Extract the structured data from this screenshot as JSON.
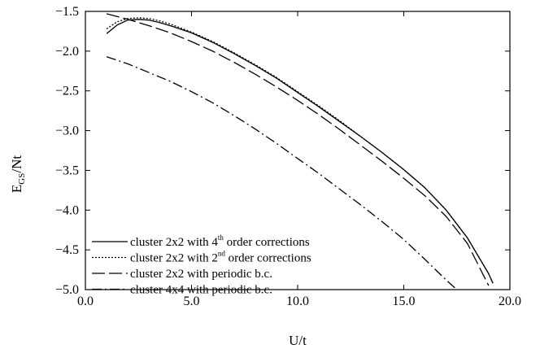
{
  "chart_data": {
    "type": "line",
    "xlabel": "U/t",
    "ylabel": {
      "base": "E",
      "sub": "GS",
      "rest": "/Nt"
    },
    "xlim": [
      0.0,
      20.0
    ],
    "ylim": [
      -5.0,
      -1.5
    ],
    "xticks": [
      {
        "value": 0.0,
        "label": "0.0"
      },
      {
        "value": 5.0,
        "label": "5.0"
      },
      {
        "value": 10.0,
        "label": "10.0"
      },
      {
        "value": 15.0,
        "label": "15.0"
      },
      {
        "value": 20.0,
        "label": "20.0"
      }
    ],
    "yticks": [
      {
        "value": -1.5,
        "label": "−1.5"
      },
      {
        "value": -2.0,
        "label": "−2.0"
      },
      {
        "value": -2.5,
        "label": "−2.5"
      },
      {
        "value": -3.0,
        "label": "−3.0"
      },
      {
        "value": -3.5,
        "label": "−3.5"
      },
      {
        "value": -4.0,
        "label": "−4.0"
      },
      {
        "value": -4.5,
        "label": "−4.5"
      },
      {
        "value": -5.0,
        "label": "−5.0"
      }
    ],
    "grid": false,
    "legend_position": "bottom-left",
    "series": [
      {
        "legend": {
          "pre": "cluster 2x2 with 4",
          "sup": "th",
          "post": " order corrections"
        },
        "style": "solid",
        "x": [
          1.0,
          1.5,
          2.0,
          2.5,
          3.0,
          3.5,
          4.0,
          5.0,
          6.0,
          7.0,
          8.0,
          9.0,
          10.0,
          11.0,
          12.0,
          13.0,
          14.0,
          15.0,
          16.0,
          17.0,
          18.0,
          19.0,
          19.2
        ],
        "y": [
          -1.78,
          -1.67,
          -1.61,
          -1.6,
          -1.61,
          -1.64,
          -1.68,
          -1.77,
          -1.89,
          -2.03,
          -2.18,
          -2.34,
          -2.52,
          -2.7,
          -2.89,
          -3.08,
          -3.28,
          -3.49,
          -3.72,
          -4.0,
          -4.35,
          -4.8,
          -4.92
        ]
      },
      {
        "legend": {
          "pre": "cluster 2x2 with 2",
          "sup": "nd",
          "post": " order corrections"
        },
        "style": "dotted",
        "x": [
          1.0,
          1.5,
          2.0,
          2.5,
          3.0,
          3.5,
          4.0,
          5.0,
          6.0,
          7.0,
          8.0,
          9.0,
          10.0,
          11.0,
          12.0,
          13.0,
          14.0,
          15.0,
          16.0,
          17.0,
          18.0,
          19.0,
          19.2
        ],
        "y": [
          -1.72,
          -1.63,
          -1.59,
          -1.58,
          -1.59,
          -1.62,
          -1.66,
          -1.76,
          -1.88,
          -2.02,
          -2.17,
          -2.33,
          -2.51,
          -2.69,
          -2.88,
          -3.08,
          -3.28,
          -3.49,
          -3.72,
          -4.0,
          -4.35,
          -4.8,
          -4.92
        ]
      },
      {
        "legend": {
          "pre": "cluster 2x2 with periodic b.c.",
          "sup": "",
          "post": ""
        },
        "style": "dashed",
        "x": [
          1.0,
          2.0,
          3.0,
          4.0,
          5.0,
          6.0,
          7.0,
          8.0,
          9.0,
          10.0,
          11.0,
          12.0,
          13.0,
          14.0,
          15.0,
          16.0,
          17.0,
          18.0,
          19.0
        ],
        "y": [
          -1.53,
          -1.6,
          -1.68,
          -1.77,
          -1.88,
          -2.0,
          -2.14,
          -2.29,
          -2.45,
          -2.62,
          -2.8,
          -2.99,
          -3.19,
          -3.39,
          -3.6,
          -3.82,
          -4.08,
          -4.42,
          -4.95
        ]
      },
      {
        "legend": {
          "pre": "cluster 4x4 with periodic b.c.",
          "sup": "",
          "post": ""
        },
        "style": "dashdot",
        "x": [
          1.0,
          2.0,
          3.0,
          4.0,
          5.0,
          6.0,
          7.0,
          8.0,
          9.0,
          10.0,
          11.0,
          12.0,
          13.0,
          14.0,
          15.0,
          16.0,
          17.0,
          17.5
        ],
        "y": [
          -2.07,
          -2.16,
          -2.27,
          -2.38,
          -2.51,
          -2.65,
          -2.81,
          -2.98,
          -3.16,
          -3.35,
          -3.54,
          -3.74,
          -3.94,
          -4.15,
          -4.37,
          -4.62,
          -4.88,
          -5.0
        ]
      }
    ]
  }
}
